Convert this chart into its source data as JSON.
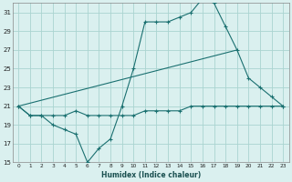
{
  "xlabel": "Humidex (Indice chaleur)",
  "bg_color": "#daf0ef",
  "grid_color": "#aad4d0",
  "line_color": "#1a7070",
  "spine_color": "#888888",
  "xlim": [
    -0.5,
    23.5
  ],
  "ylim": [
    15,
    32
  ],
  "xticks": [
    0,
    1,
    2,
    3,
    4,
    5,
    6,
    7,
    8,
    9,
    10,
    11,
    12,
    13,
    14,
    15,
    16,
    17,
    18,
    19,
    20,
    21,
    22,
    23
  ],
  "yticks": [
    15,
    17,
    19,
    21,
    23,
    25,
    27,
    29,
    31
  ],
  "series1_x": [
    0,
    1,
    2,
    3,
    4,
    5,
    6,
    7,
    8,
    9,
    10,
    11,
    12,
    13,
    14,
    15,
    16,
    17,
    18,
    19,
    20,
    21,
    22,
    23
  ],
  "series1_y": [
    21,
    20,
    20,
    19,
    18.5,
    18,
    15,
    16.5,
    17.5,
    21,
    25,
    30,
    30,
    30,
    30.5,
    31,
    32.5,
    32,
    29.5,
    27,
    24,
    23,
    22,
    21
  ],
  "series2_x": [
    0,
    1,
    2,
    3,
    4,
    5,
    6,
    7,
    8,
    9,
    10,
    11,
    12,
    13,
    14,
    15,
    16,
    17,
    18,
    19,
    20,
    21,
    22,
    23
  ],
  "series2_y": [
    21,
    20,
    20,
    20,
    20,
    20.5,
    20,
    20,
    20,
    20,
    20,
    20.5,
    20.5,
    20.5,
    20.5,
    21,
    21,
    21,
    21,
    21,
    21,
    21,
    21,
    21
  ],
  "series3_x": [
    0,
    19
  ],
  "series3_y": [
    21,
    27
  ]
}
